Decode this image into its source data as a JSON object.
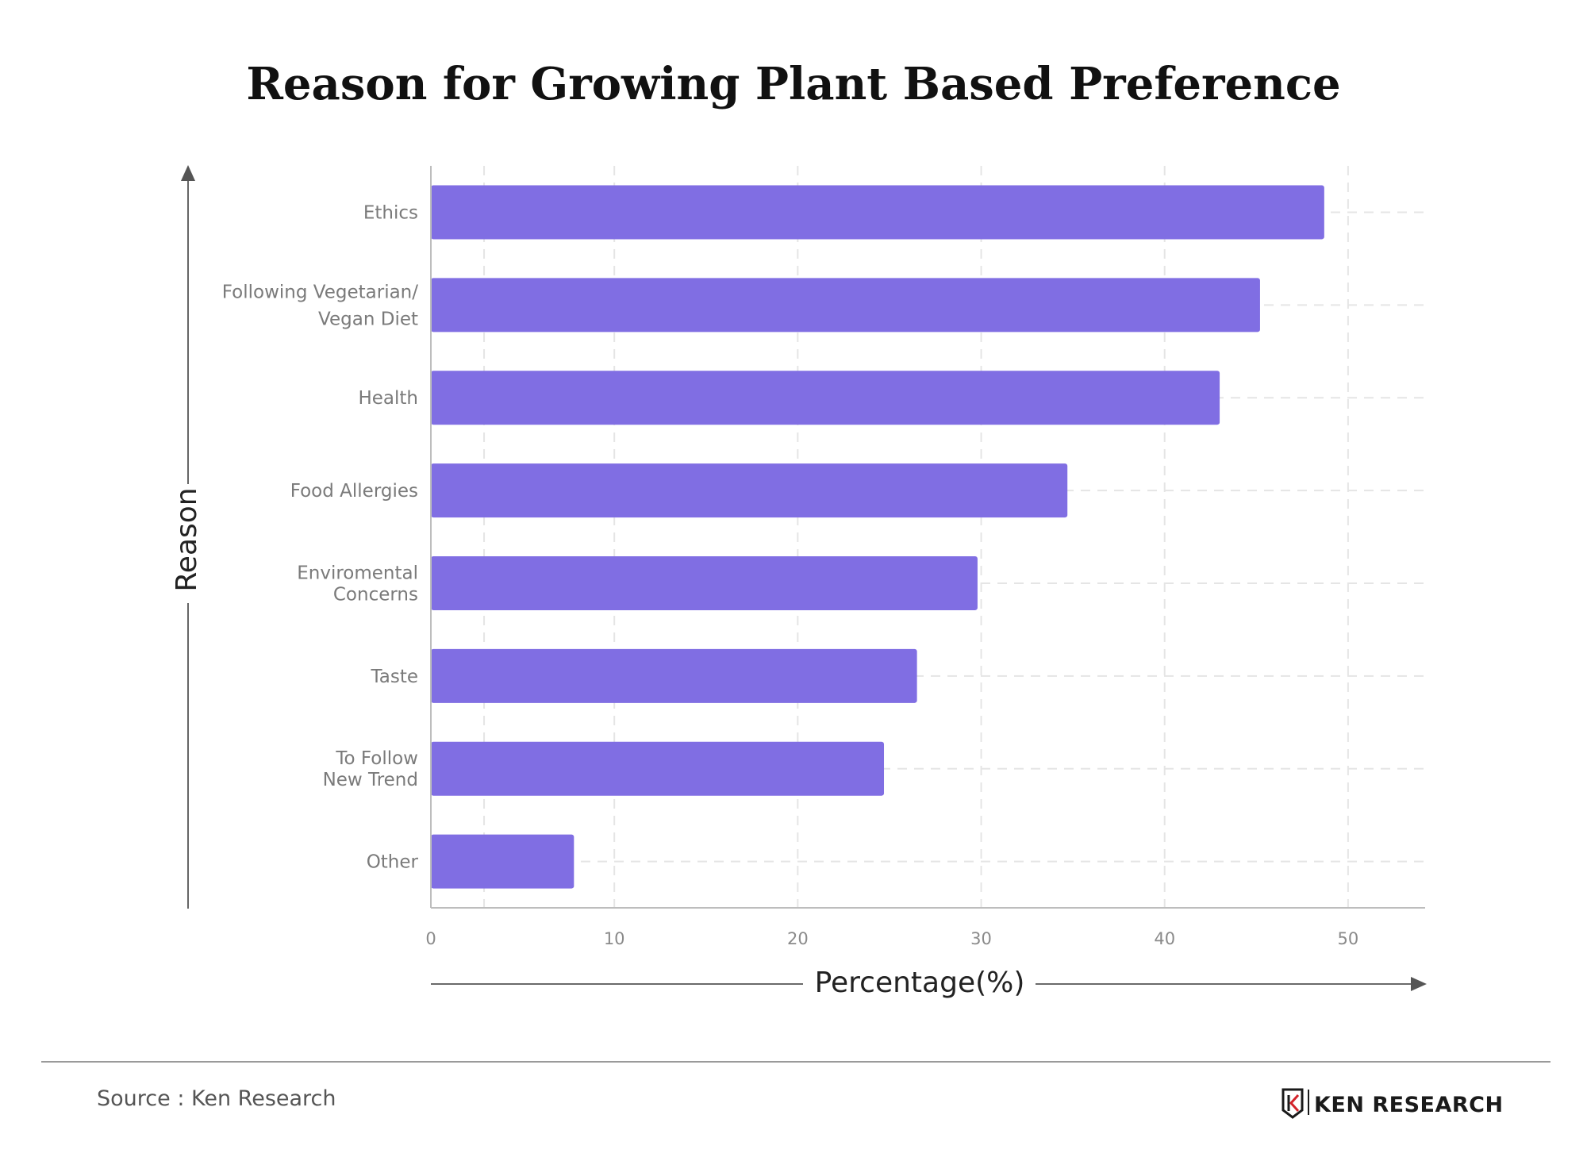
{
  "chart_data": {
    "type": "bar",
    "orientation": "horizontal",
    "title": "Reason for Growing Plant Based Preference",
    "xlabel": "Percentage(%)",
    "ylabel": "Reason",
    "categories": [
      [
        "Ethics"
      ],
      [
        "Following Vegetarian/",
        "Vegan Diet"
      ],
      [
        "Health"
      ],
      [
        "Food  Allergies"
      ],
      [
        "Enviromental",
        "Concerns"
      ],
      [
        "Taste"
      ],
      [
        "To Follow",
        "New Trend"
      ],
      [
        "Other"
      ]
    ],
    "values": [
      48.7,
      45.2,
      43.0,
      34.7,
      29.8,
      26.5,
      24.7,
      7.8
    ],
    "xticks": [
      "0",
      "10",
      "20",
      "30",
      "40",
      "50"
    ],
    "xlim": [
      0,
      54.2
    ],
    "grid": true,
    "bar_color": "#806EE3",
    "grid_color": "#e5e5e5",
    "axis_color": "#bdbdbd"
  },
  "footer": {
    "source": "Source : Ken Research",
    "logo_text": "KEN RESEARCH"
  },
  "colors": {
    "logo_accent": "#d3232a",
    "logo_dark": "#1a1a1a"
  }
}
